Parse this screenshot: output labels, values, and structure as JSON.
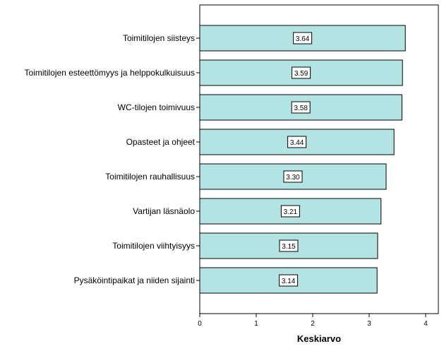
{
  "chart_data": {
    "type": "bar",
    "orientation": "horizontal",
    "categories": [
      "Toimitilojen siisteys",
      "Toimitilojen esteettömyys ja helppokulkuisuus",
      "WC-tilojen toimivuus",
      "Opasteet ja ohjeet",
      "Toimitilojen rauhallisuus",
      "Vartijan läsnäolo",
      "Toimitilojen viihtyisyys",
      "Pysäköintipaikat ja niiden sijainti"
    ],
    "values": [
      3.64,
      3.59,
      3.58,
      3.44,
      3.3,
      3.21,
      3.15,
      3.14
    ],
    "value_labels": [
      "3.64",
      "3.59",
      "3.58",
      "3.44",
      "3.30",
      "3.21",
      "3.15",
      "3.14"
    ],
    "xlabel": "Keskiarvo",
    "xlim": [
      0,
      4.2
    ],
    "xticks": [
      0,
      1,
      2,
      3,
      4
    ],
    "xtick_labels": [
      "0",
      "1",
      "2",
      "3",
      "4"
    ],
    "grid": false,
    "legend": "none",
    "colors": {
      "bar_fill": "#b3e3e3",
      "bar_stroke": "#000000",
      "label_box_fill": "#ffffff",
      "axis": "#000000"
    }
  }
}
